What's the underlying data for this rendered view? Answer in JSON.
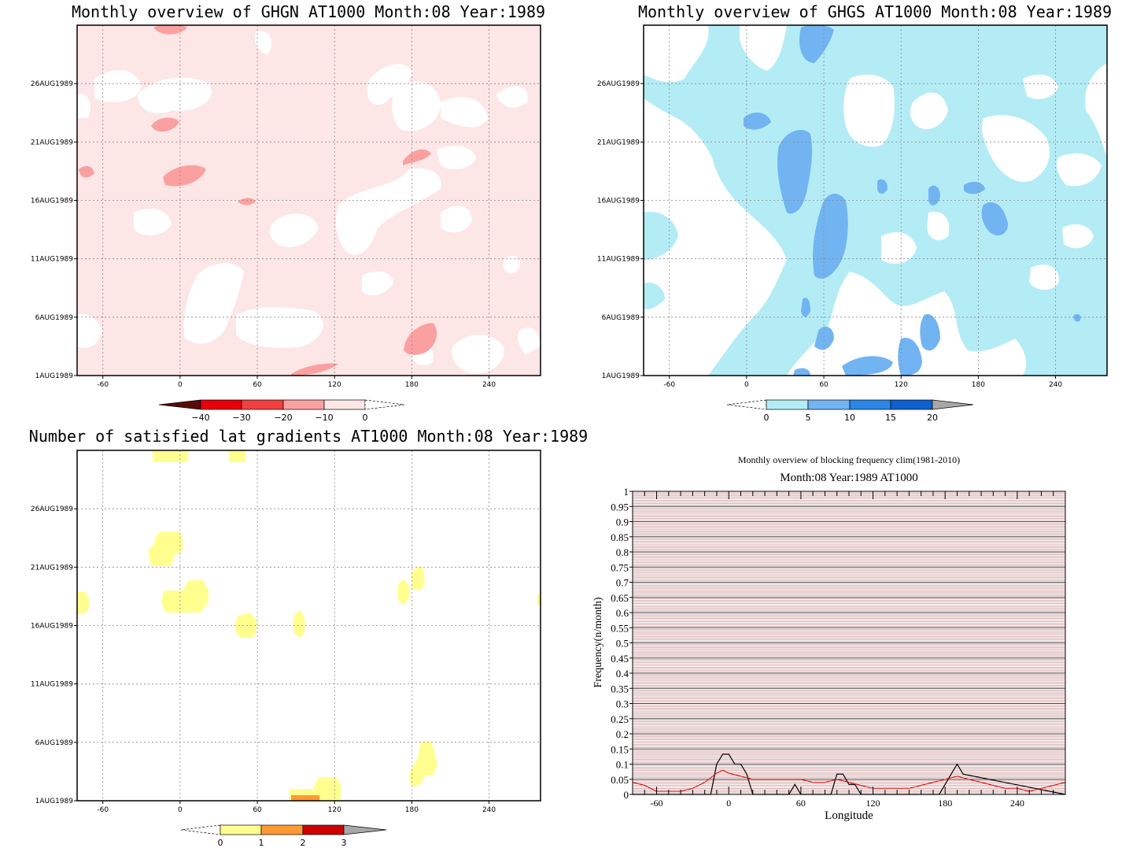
{
  "colors": {
    "red_shades": [
      "#5a0a0a",
      "#e8000b",
      "#f04040",
      "#fba0a0",
      "#fde6e6"
    ],
    "blue_shades": [
      "#b4ecf6",
      "#72b4f2",
      "#2b86e8",
      "#0e5fcf"
    ],
    "yellow_shades": [
      "#ffff90",
      "#ff9933",
      "#cc0000"
    ],
    "grey": "#a8a8a8",
    "freq_black": "#000000",
    "freq_red": "#dd0000",
    "freq_grid": "#c08080"
  },
  "panel_ghgn": {
    "title": "Monthly overview of GHGN AT1000 Month:08 Year:1989",
    "y_ticks": [
      "26AUG1989",
      "21AUG1989",
      "16AUG1989",
      "11AUG1989",
      "6AUG1989",
      "1AUG1989"
    ],
    "x_ticks": [
      "-60",
      "0",
      "60",
      "120",
      "180",
      "240"
    ],
    "colorbar_labels": [
      "−40",
      "−30",
      "−20",
      "−10",
      "0"
    ]
  },
  "panel_ghgs": {
    "title": "Monthly overview of GHGS AT1000 Month:08 Year:1989",
    "y_ticks": [
      "26AUG1989",
      "21AUG1989",
      "16AUG1989",
      "11AUG1989",
      "6AUG1989",
      "1AUG1989"
    ],
    "x_ticks": [
      "-60",
      "0",
      "60",
      "120",
      "180",
      "240"
    ],
    "colorbar_labels": [
      "0",
      "5",
      "10",
      "15",
      "20"
    ]
  },
  "panel_lat": {
    "title": "Number of satisfied lat gradients AT1000 Month:08 Year:1989",
    "y_ticks": [
      "26AUG1989",
      "21AUG1989",
      "16AUG1989",
      "11AUG1989",
      "6AUG1989",
      "1AUG1989"
    ],
    "x_ticks": [
      "-60",
      "0",
      "60",
      "120",
      "180",
      "240"
    ],
    "colorbar_labels": [
      "0",
      "1",
      "2",
      "3"
    ]
  },
  "panel_freq": {
    "title": "Monthly overview of blocking frequency clim(1981-2010)",
    "subtitle": "Month:08 Year:1989  AT1000",
    "xlabel": "Longitude",
    "ylabel": "Frequency(n/month)",
    "x_ticks": [
      "-60",
      "0",
      "60",
      "120",
      "180",
      "240"
    ],
    "y_ticks": [
      "0",
      "0.05",
      "0.1",
      "0.15",
      "0.2",
      "0.25",
      "0.3",
      "0.35",
      "0.4",
      "0.45",
      "0.5",
      "0.55",
      "0.6",
      "0.65",
      "0.7",
      "0.75",
      "0.8",
      "0.85",
      "0.9",
      "0.95",
      "1"
    ]
  },
  "chart_data": [
    {
      "type": "heatmap",
      "title": "Monthly overview of GHGN AT1000 Month:08 Year:1989",
      "x_ticks": [
        -60,
        0,
        60,
        120,
        180,
        240
      ],
      "y_ticks": [
        "1AUG1989",
        "6AUG1989",
        "11AUG1989",
        "16AUG1989",
        "21AUG1989",
        "26AUG1989"
      ],
      "xlim": [
        -80,
        280
      ],
      "colorbar": [
        -40,
        -30,
        -20,
        -10,
        0
      ]
    },
    {
      "type": "heatmap",
      "title": "Monthly overview of GHGS AT1000 Month:08 Year:1989",
      "x_ticks": [
        -60,
        0,
        60,
        120,
        180,
        240
      ],
      "y_ticks": [
        "1AUG1989",
        "6AUG1989",
        "11AUG1989",
        "16AUG1989",
        "21AUG1989",
        "26AUG1989"
      ],
      "xlim": [
        -80,
        280
      ],
      "colorbar": [
        0,
        5,
        10,
        15,
        20
      ]
    },
    {
      "type": "heatmap",
      "title": "Number of satisfied lat gradients AT1000 Month:08 Year:1989",
      "x_ticks": [
        -60,
        0,
        60,
        120,
        180,
        240
      ],
      "y_ticks": [
        "1AUG1989",
        "6AUG1989",
        "11AUG1989",
        "16AUG1989",
        "21AUG1989",
        "26AUG1989"
      ],
      "xlim": [
        -80,
        280
      ],
      "colorbar": [
        0,
        1,
        2,
        3
      ]
    },
    {
      "type": "line",
      "title": "Monthly overview of blocking frequency clim(1981-2010)",
      "subtitle": "Month:08 Year:1989  AT1000",
      "xlabel": "Longitude",
      "ylabel": "Frequency(n/month)",
      "xlim": [
        -80,
        280
      ],
      "ylim": [
        0,
        1
      ],
      "series": [
        {
          "color": "black",
          "x": [
            -80,
            -15,
            -10,
            -5,
            0,
            5,
            10,
            15,
            20,
            50,
            55,
            60,
            85,
            90,
            95,
            100,
            105,
            110,
            175,
            180,
            185,
            190,
            195,
            280
          ],
          "y": [
            0,
            0,
            0.1,
            0.133,
            0.133,
            0.1,
            0.1,
            0.067,
            0,
            0,
            0.033,
            0,
            0,
            0.067,
            0.067,
            0.033,
            0.033,
            0,
            0,
            0.033,
            0.067,
            0.1,
            0.067,
            0
          ]
        },
        {
          "color": "red",
          "x": [
            -80,
            -70,
            -60,
            -50,
            -40,
            -30,
            -20,
            -10,
            -5,
            0,
            10,
            20,
            30,
            40,
            50,
            60,
            70,
            80,
            90,
            100,
            110,
            120,
            130,
            140,
            150,
            160,
            170,
            180,
            190,
            200,
            210,
            220,
            230,
            240,
            250,
            260,
            270,
            280
          ],
          "y": [
            0.04,
            0.03,
            0.01,
            0.01,
            0.01,
            0.02,
            0.04,
            0.07,
            0.08,
            0.07,
            0.06,
            0.05,
            0.05,
            0.05,
            0.05,
            0.05,
            0.04,
            0.04,
            0.05,
            0.04,
            0.03,
            0.02,
            0.02,
            0.02,
            0.02,
            0.03,
            0.04,
            0.05,
            0.06,
            0.05,
            0.04,
            0.03,
            0.02,
            0.02,
            0.01,
            0.02,
            0.03,
            0.04
          ]
        }
      ]
    }
  ]
}
